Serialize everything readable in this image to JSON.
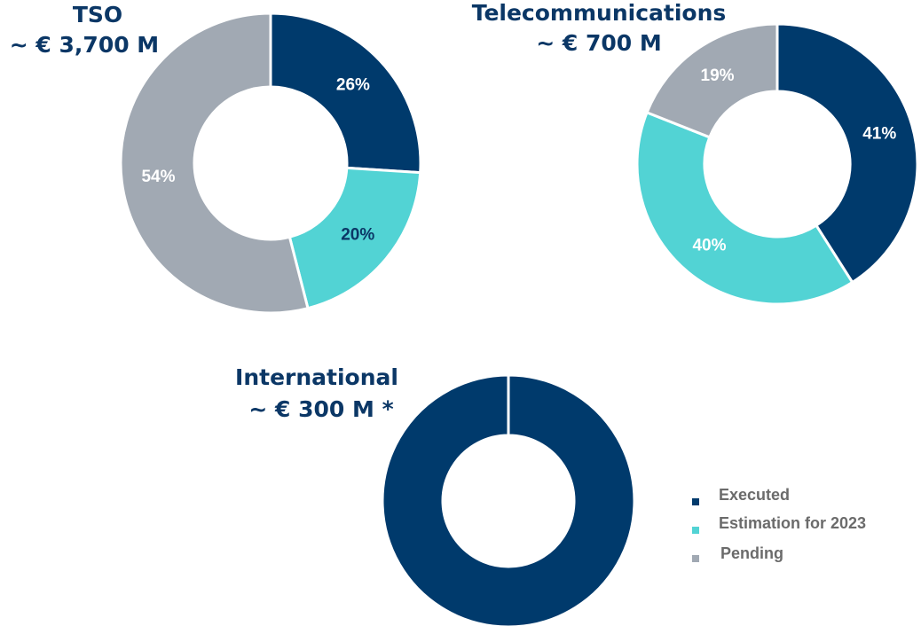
{
  "legend": {
    "entries": [
      {
        "name": "Executed",
        "color": "#003a6c"
      },
      {
        "name": "Estimation for 2023",
        "color": "#52d3d4"
      },
      {
        "name": "Pending",
        "color": "#a1a9b3"
      }
    ]
  },
  "chart_data": [
    {
      "type": "pie",
      "donut": true,
      "title": "TSO",
      "subtitle": "~ € 3,700 M",
      "categories": [
        "Executed",
        "Estimation for 2023",
        "Pending"
      ],
      "values": [
        26,
        20,
        54
      ],
      "value_labels": [
        "26%",
        "20%",
        "54%"
      ],
      "colors": [
        "#003a6c",
        "#52d3d4",
        "#a1a9b3"
      ],
      "label_colors": [
        "#ffffff",
        "#0b3766",
        "#ffffff"
      ]
    },
    {
      "type": "pie",
      "donut": true,
      "title": "Telecommunications",
      "subtitle": "~ € 700 M",
      "categories": [
        "Executed",
        "Estimation for 2023",
        "Pending"
      ],
      "values": [
        41,
        40,
        19
      ],
      "value_labels": [
        "41%",
        "40%",
        "19%"
      ],
      "colors": [
        "#003a6c",
        "#52d3d4",
        "#a1a9b3"
      ],
      "label_colors": [
        "#ffffff",
        "#ffffff",
        "#ffffff"
      ]
    },
    {
      "type": "pie",
      "donut": true,
      "title": "International",
      "subtitle": "~ € 300 M *",
      "categories": [
        "Executed"
      ],
      "values": [
        100
      ],
      "colors": [
        "#003a6c"
      ]
    }
  ]
}
